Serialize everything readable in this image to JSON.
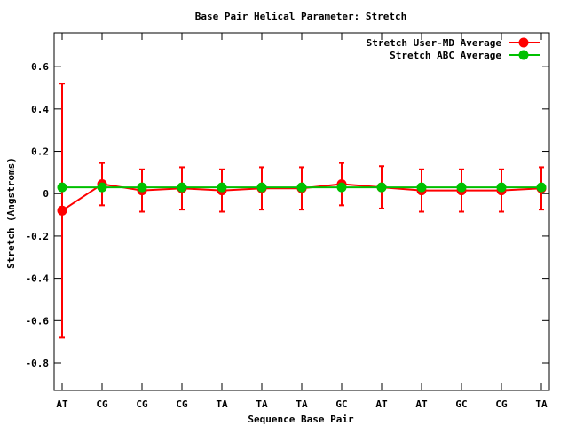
{
  "chart_data": {
    "type": "line",
    "title": "Base Pair Helical Parameter: Stretch",
    "xlabel": "Sequence Base Pair",
    "ylabel": "Stretch (Angstroms)",
    "categories": [
      "AT",
      "CG",
      "CG",
      "CG",
      "TA",
      "TA",
      "TA",
      "GC",
      "AT",
      "AT",
      "GC",
      "CG",
      "TA"
    ],
    "ylim": [
      -0.93,
      0.76
    ],
    "yticks": [
      "0.6",
      "0.4",
      "0.2",
      "0",
      "-0.2",
      "-0.4",
      "-0.6",
      "-0.8"
    ],
    "ytick_values": [
      0.6,
      0.4,
      0.2,
      0,
      -0.2,
      -0.4,
      -0.6,
      -0.8
    ],
    "grid": false,
    "legend_position": "top-right",
    "series": [
      {
        "name": "Stretch User-MD Average",
        "color": "#ff0000",
        "values": [
          -0.08,
          0.045,
          0.015,
          0.025,
          0.015,
          0.025,
          0.025,
          0.045,
          0.03,
          0.015,
          0.015,
          0.015,
          0.025
        ],
        "error": [
          0.6,
          0.1,
          0.1,
          0.1,
          0.1,
          0.1,
          0.1,
          0.1,
          0.1,
          0.1,
          0.1,
          0.1,
          0.1
        ]
      },
      {
        "name": "Stretch ABC Average",
        "color": "#00c000",
        "values": [
          0.03,
          0.03,
          0.03,
          0.03,
          0.03,
          0.03,
          0.03,
          0.03,
          0.03,
          0.03,
          0.03,
          0.03,
          0.03
        ]
      }
    ]
  }
}
